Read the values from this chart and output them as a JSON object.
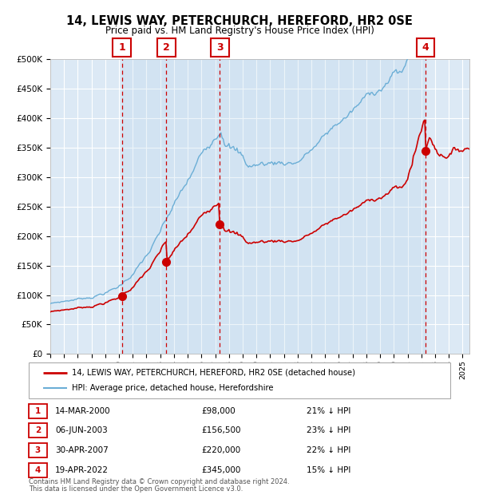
{
  "title": "14, LEWIS WAY, PETERCHURCH, HEREFORD, HR2 0SE",
  "subtitle": "Price paid vs. HM Land Registry's House Price Index (HPI)",
  "background_color": "#ffffff",
  "plot_bg_color": "#dce9f5",
  "grid_color": "#ffffff",
  "hpi_color": "#6baed6",
  "property_color": "#cc0000",
  "sale_marker_color": "#cc0000",
  "dashed_line_color": "#cc0000",
  "transactions": [
    {
      "num": 1,
      "x_year": 2000.2,
      "price": 98000
    },
    {
      "num": 2,
      "x_year": 2003.43,
      "price": 156500
    },
    {
      "num": 3,
      "x_year": 2007.33,
      "price": 220000
    },
    {
      "num": 4,
      "x_year": 2022.3,
      "price": 345000
    }
  ],
  "legend_property": "14, LEWIS WAY, PETERCHURCH, HEREFORD, HR2 0SE (detached house)",
  "legend_hpi": "HPI: Average price, detached house, Herefordshire",
  "footer1": "Contains HM Land Registry data © Crown copyright and database right 2024.",
  "footer2": "This data is licensed under the Open Government Licence v3.0.",
  "table_rows": [
    {
      "num": 1,
      "date": "14-MAR-2000",
      "price": "£98,000",
      "pct": "21% ↓ HPI"
    },
    {
      "num": 2,
      "date": "06-JUN-2003",
      "price": "£156,500",
      "pct": "23% ↓ HPI"
    },
    {
      "num": 3,
      "date": "30-APR-2007",
      "price": "£220,000",
      "pct": "22% ↓ HPI"
    },
    {
      "num": 4,
      "date": "19-APR-2022",
      "price": "£345,000",
      "pct": "15% ↓ HPI"
    }
  ],
  "xmin": 1995.0,
  "xmax": 2025.5,
  "ymin": 0,
  "ymax": 500000,
  "yticks": [
    0,
    50000,
    100000,
    150000,
    200000,
    250000,
    300000,
    350000,
    400000,
    450000,
    500000
  ],
  "ytick_labels": [
    "£0",
    "£50K",
    "£100K",
    "£150K",
    "£200K",
    "£250K",
    "£300K",
    "£350K",
    "£400K",
    "£450K",
    "£500K"
  ],
  "xticks": [
    1995,
    1996,
    1997,
    1998,
    1999,
    2000,
    2001,
    2002,
    2003,
    2004,
    2005,
    2006,
    2007,
    2008,
    2009,
    2010,
    2011,
    2012,
    2013,
    2014,
    2015,
    2016,
    2017,
    2018,
    2019,
    2020,
    2021,
    2022,
    2023,
    2024,
    2025
  ]
}
